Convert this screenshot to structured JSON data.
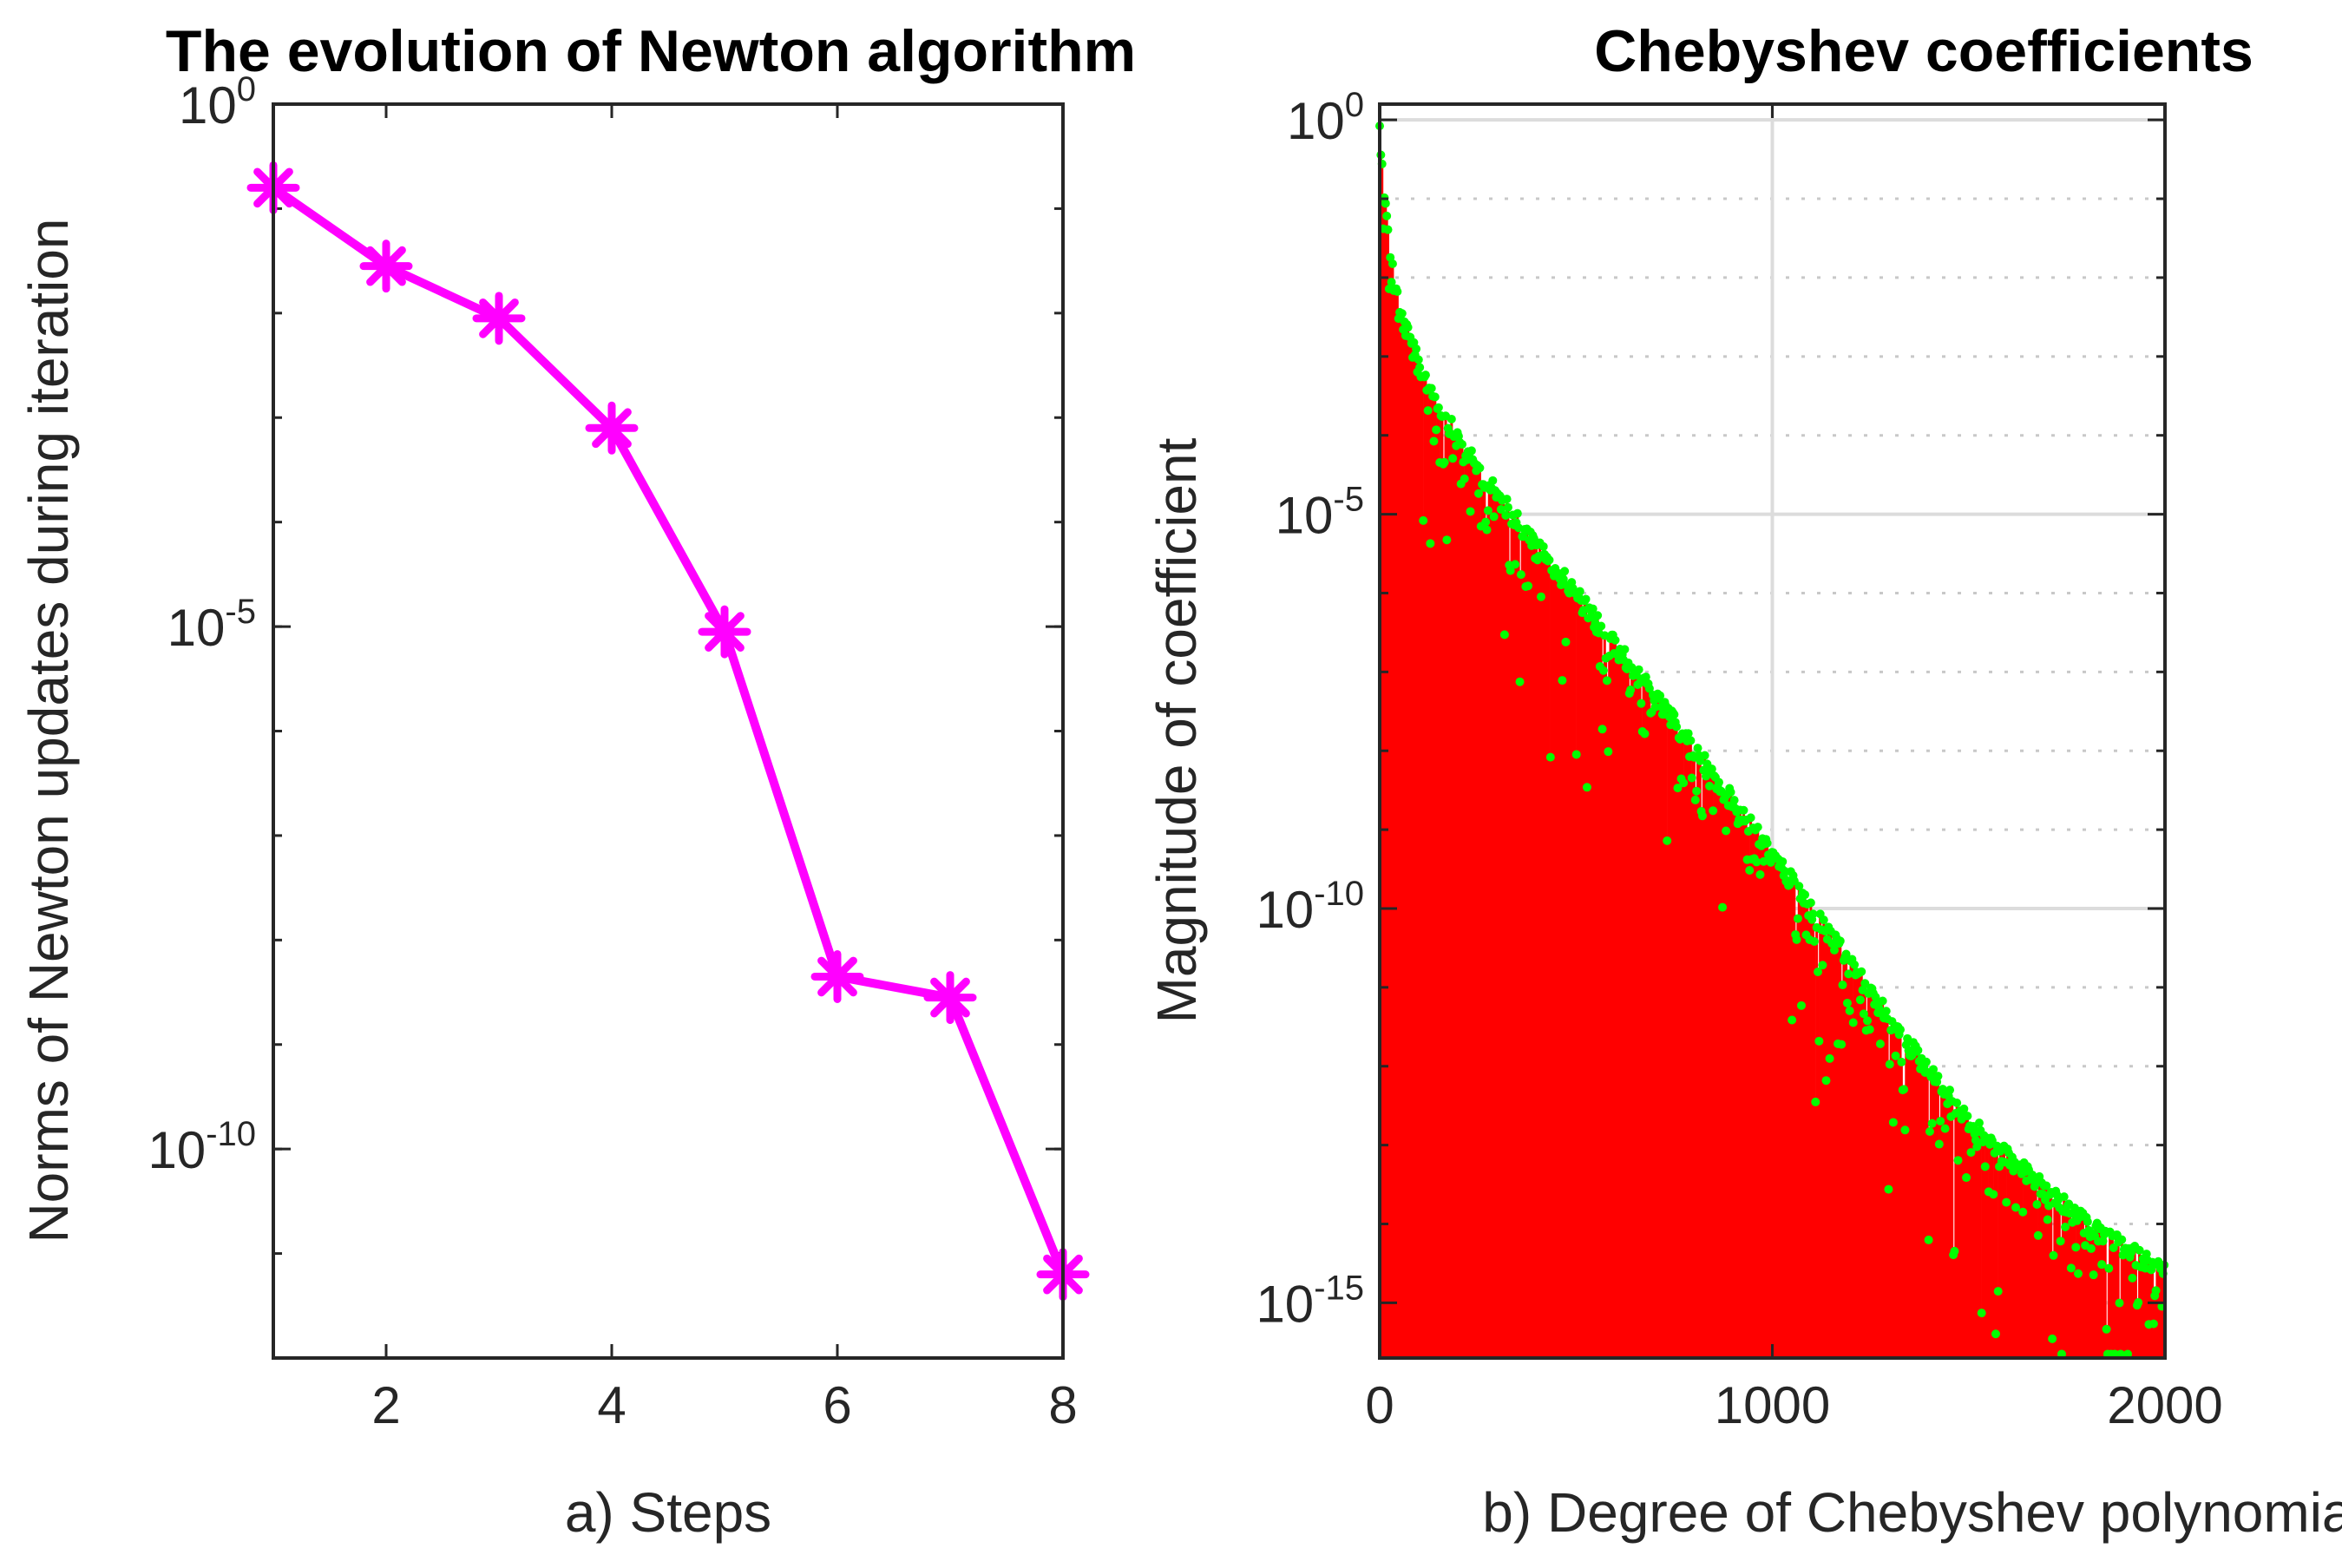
{
  "colors": {
    "left_line": "#ff00ff",
    "stem": "#ff0000",
    "marker": "#00ff00",
    "axis": "#262626",
    "grid": "#dcdcdc"
  },
  "chart_data": [
    {
      "type": "line",
      "title": "The evolution of Newton algorithm",
      "xlabel": "a) Steps",
      "ylabel": "Norms of Newton updates during iteration",
      "yscale": "log",
      "xlim": [
        1,
        8
      ],
      "ylim_log10": [
        -12,
        0
      ],
      "xticks": [
        2,
        4,
        6,
        8
      ],
      "yticks": [
        {
          "base": "10",
          "exp": "0",
          "log10": 0
        },
        {
          "base": "10",
          "exp": "-5",
          "log10": -5
        },
        {
          "base": "10",
          "exp": "-10",
          "log10": -10
        }
      ],
      "marker": "asterisk",
      "x": [
        1,
        2,
        3,
        4,
        5,
        6,
        7,
        8
      ],
      "y_log10": [
        -0.8,
        -1.55,
        -2.05,
        -3.1,
        -5.05,
        -8.35,
        -8.55,
        -11.2
      ]
    },
    {
      "type": "stem",
      "title": "Chebyshev coefficients",
      "xlabel": "b) Degree of Chebyshev polynomial",
      "ylabel": "Magnitude of coefficient",
      "yscale": "log",
      "xlim": [
        0,
        2000
      ],
      "ylim_log10": [
        -15.7,
        0.2
      ],
      "grid": true,
      "xticks": [
        0,
        1000,
        2000
      ],
      "yticks": [
        {
          "base": "10",
          "exp": "0",
          "log10": 0
        },
        {
          "base": "10",
          "exp": "-5",
          "log10": -5
        },
        {
          "base": "10",
          "exp": "-10",
          "log10": -10
        },
        {
          "base": "10",
          "exp": "-15",
          "log10": -15
        }
      ],
      "envelope": {
        "description": "upper envelope of |c_n| (log10) vs degree n",
        "n": [
          0,
          20,
          50,
          100,
          200,
          300,
          500,
          700,
          1000,
          1300,
          1500,
          1800,
          2000
        ],
        "log10": [
          0,
          -1.3,
          -2.3,
          -3.0,
          -3.95,
          -4.65,
          -5.9,
          -7.2,
          -9.2,
          -11.3,
          -12.6,
          -13.9,
          -14.5
        ]
      },
      "num_coefficients": 2000
    }
  ]
}
